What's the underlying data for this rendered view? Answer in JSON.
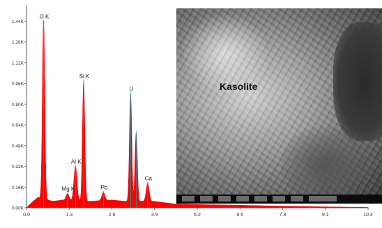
{
  "chart_data": {
    "type": "line",
    "title": "",
    "xlabel": "",
    "ylabel": "",
    "xlim": [
      0,
      10.4
    ],
    "ylim": [
      0,
      1.56
    ],
    "x_ticks": [
      "0.0",
      "1.3",
      "2.6",
      "3.9",
      "5.2",
      "6.5",
      "7.8",
      "9.1",
      "10.4"
    ],
    "x_tick_values": [
      0,
      1.3,
      2.6,
      3.9,
      5.2,
      6.5,
      7.8,
      9.1,
      10.4
    ],
    "y_ticks": [
      "0.00K",
      "0.16K",
      "0.32K",
      "0.48K",
      "0.64K",
      "0.80K",
      "0.96K",
      "1.12K",
      "1.28K",
      "1.44K"
    ],
    "y_tick_values": [
      0,
      0.16,
      0.32,
      0.48,
      0.64,
      0.8,
      0.96,
      1.12,
      1.28,
      1.44
    ],
    "grid": false,
    "peaks": [
      {
        "label": "O K",
        "x": 0.52,
        "y": 1.44
      },
      {
        "label": "Mg K",
        "x": 1.25,
        "y": 0.11
      },
      {
        "label": "Al K",
        "x": 1.49,
        "y": 0.32
      },
      {
        "label": "Si K",
        "x": 1.74,
        "y": 0.98
      },
      {
        "label": "Pb",
        "x": 2.34,
        "y": 0.12
      },
      {
        "label": "U",
        "x": 3.17,
        "y": 0.88
      },
      {
        "label": "",
        "x": 3.34,
        "y": 0.58
      },
      {
        "label": "Ca",
        "x": 3.69,
        "y": 0.19
      }
    ],
    "background": [
      [
        0.0,
        0.0
      ],
      [
        0.2,
        0.05
      ],
      [
        0.35,
        0.08
      ],
      [
        0.8,
        0.05
      ],
      [
        1.1,
        0.06
      ],
      [
        1.9,
        0.05
      ],
      [
        2.6,
        0.06
      ],
      [
        3.0,
        0.05
      ],
      [
        3.9,
        0.05
      ],
      [
        4.5,
        0.03
      ],
      [
        5.2,
        0.025
      ],
      [
        6.5,
        0.02
      ],
      [
        7.8,
        0.012
      ],
      [
        9.1,
        0.007
      ],
      [
        10.4,
        0.003
      ]
    ],
    "series_color": "#ff0000"
  },
  "inset": {
    "label": "Kasolite"
  }
}
